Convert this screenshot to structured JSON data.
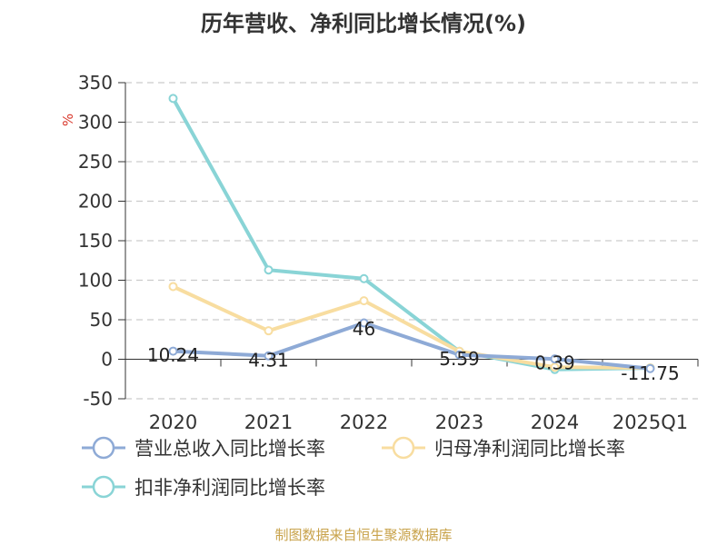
{
  "chart_data": {
    "type": "line",
    "title": "历年营收、净利同比增长情况(%)",
    "ylabel": "%",
    "categories": [
      "2020",
      "2021",
      "2022",
      "2023",
      "2024",
      "2025Q1"
    ],
    "ylim": [
      -50,
      350
    ],
    "yticks": [
      350,
      300,
      250,
      200,
      150,
      100,
      50,
      0,
      -50
    ],
    "grid": true,
    "legend_position": "bottom-left",
    "series": [
      {
        "name": "营业总收入同比增长率",
        "color": "#8eaad6",
        "values": [
          10.24,
          4.31,
          46,
          5.59,
          0.39,
          -11.75
        ],
        "labels": [
          "10.24",
          "4.31",
          "46",
          "5.59",
          "0.39",
          "-11.75"
        ]
      },
      {
        "name": "归母净利润同比增长率",
        "color": "#f8dda0",
        "values": [
          92,
          36,
          74,
          10,
          -10,
          -11
        ]
      },
      {
        "name": "扣非净利润同比增长率",
        "color": "#89d4d6",
        "values": [
          330,
          113,
          102,
          10,
          -13,
          -11
        ]
      }
    ]
  },
  "source": "制图数据来自恒生聚源数据库"
}
